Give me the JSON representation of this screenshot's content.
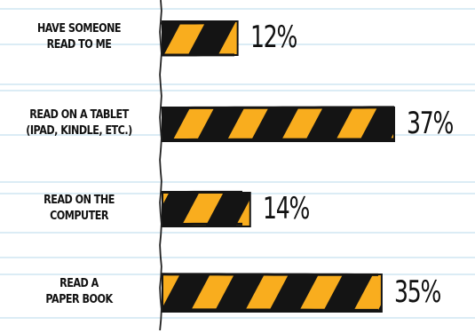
{
  "chart_data": {
    "type": "bar",
    "orientation": "horizontal",
    "categories": [
      [
        "HAVE SOMEONE",
        "READ TO ME"
      ],
      [
        "READ ON A TABLET",
        "(IPAD, KINDLE, ETC.)"
      ],
      [
        "READ ON THE",
        "COMPUTER"
      ],
      [
        "READ A",
        "PAPER BOOK"
      ]
    ],
    "values": [
      12,
      37,
      14,
      35
    ],
    "value_labels": [
      "12%",
      "37%",
      "14%",
      "35%"
    ],
    "xlim": [
      0,
      37
    ],
    "grid": false,
    "legend": "none"
  },
  "colors": {
    "bar_fill": "#f9ad1e",
    "bar_stripe": "#141414",
    "rule_lines": "#cfe6f2",
    "axis": "#222222",
    "text": "#111111"
  }
}
